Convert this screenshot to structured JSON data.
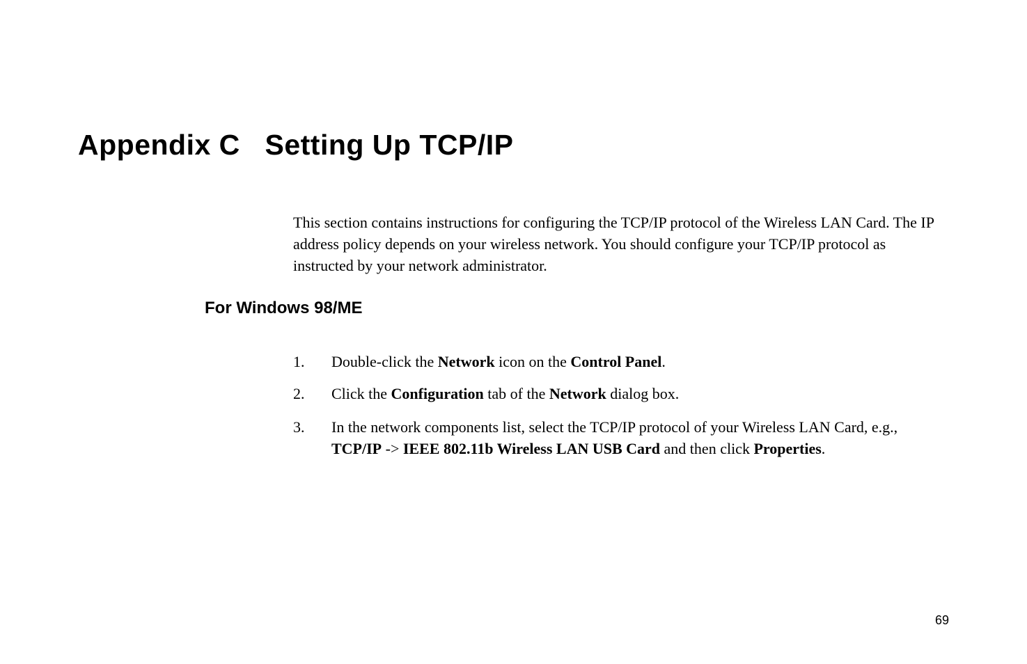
{
  "title": {
    "appendix_label": "Appendix C",
    "main_title": "Setting Up TCP/IP"
  },
  "intro_paragraph": "This section contains instructions for configuring the TCP/IP protocol of the Wireless LAN Card. The IP address policy depends on your wireless network. You should configure your TCP/IP protocol as instructed by your network administrator.",
  "section_heading": "For Windows 98/ME",
  "list": {
    "item1": {
      "number": "1.",
      "text_prefix": "Double-click the ",
      "bold1": "Network",
      "text_mid": " icon on the ",
      "bold2": "Control Panel",
      "text_suffix": "."
    },
    "item2": {
      "number": "2.",
      "text_prefix": "Click the ",
      "bold1": "Configuration",
      "text_mid": " tab of the ",
      "bold2": "Network",
      "text_suffix": " dialog box."
    },
    "item3": {
      "number": "3.",
      "text_prefix": "In the network components list, select the TCP/IP protocol of your Wireless LAN Card, e.g., ",
      "bold1": "TCP/IP",
      "text_arrow": " -> ",
      "bold2": "IEEE 802.11b Wireless LAN USB Card",
      "text_mid": " and then click ",
      "bold3": "Properties",
      "text_suffix": "."
    }
  },
  "page_number": "69",
  "colors": {
    "text": "#000000",
    "background": "#ffffff"
  },
  "fonts": {
    "heading_family": "Arial",
    "body_family": "Times New Roman",
    "title_size": 41,
    "section_size": 24,
    "body_size": 22,
    "page_num_size": 18
  }
}
